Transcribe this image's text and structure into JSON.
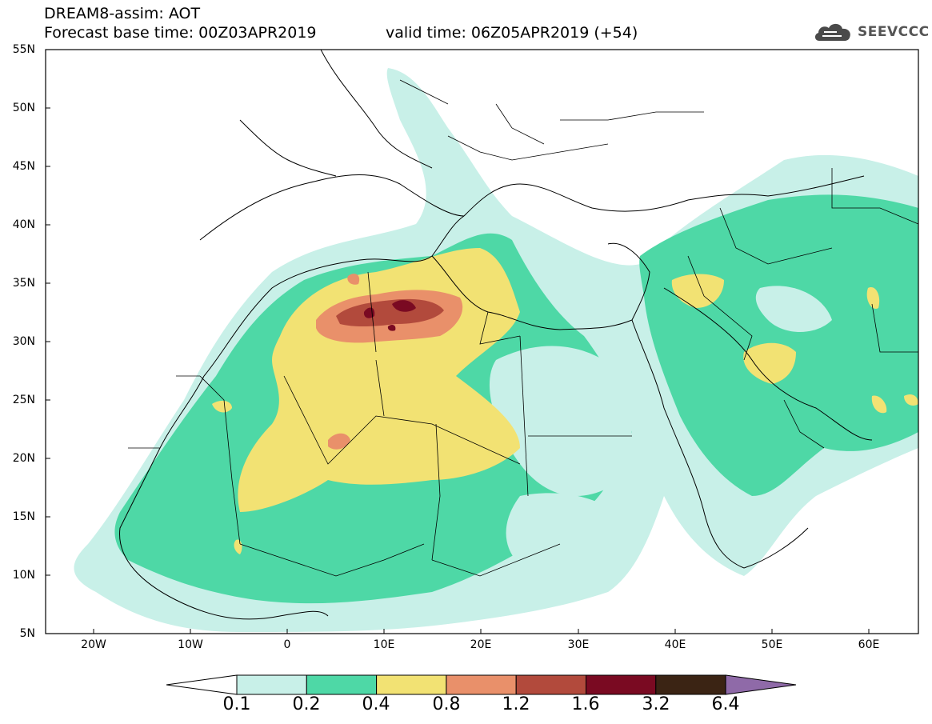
{
  "header": {
    "title": "DREAM8-assim: AOT",
    "base_time": "Forecast base time: 00Z03APR2019",
    "valid_time": "valid time: 06Z05APR2019 (+54)"
  },
  "logo": {
    "text": "SEEVCCC",
    "icon": "cloud-icon"
  },
  "map": {
    "latitude_ticks": [
      "55N",
      "50N",
      "45N",
      "40N",
      "35N",
      "30N",
      "25N",
      "20N",
      "15N",
      "10N",
      "5N"
    ],
    "longitude_ticks": [
      "20W",
      "10W",
      "0",
      "10E",
      "20E",
      "30E",
      "40E",
      "50E",
      "60E"
    ]
  },
  "legend": {
    "levels": [
      "0.1",
      "0.2",
      "0.4",
      "0.8",
      "1.2",
      "1.6",
      "3.2",
      "6.4"
    ],
    "colors": [
      "#ffffff",
      "#c8f0e8",
      "#4ed8a6",
      "#f2e273",
      "#e9906a",
      "#b24a3c",
      "#7a0a22",
      "#3b2414",
      "#8f6aa8"
    ]
  }
}
